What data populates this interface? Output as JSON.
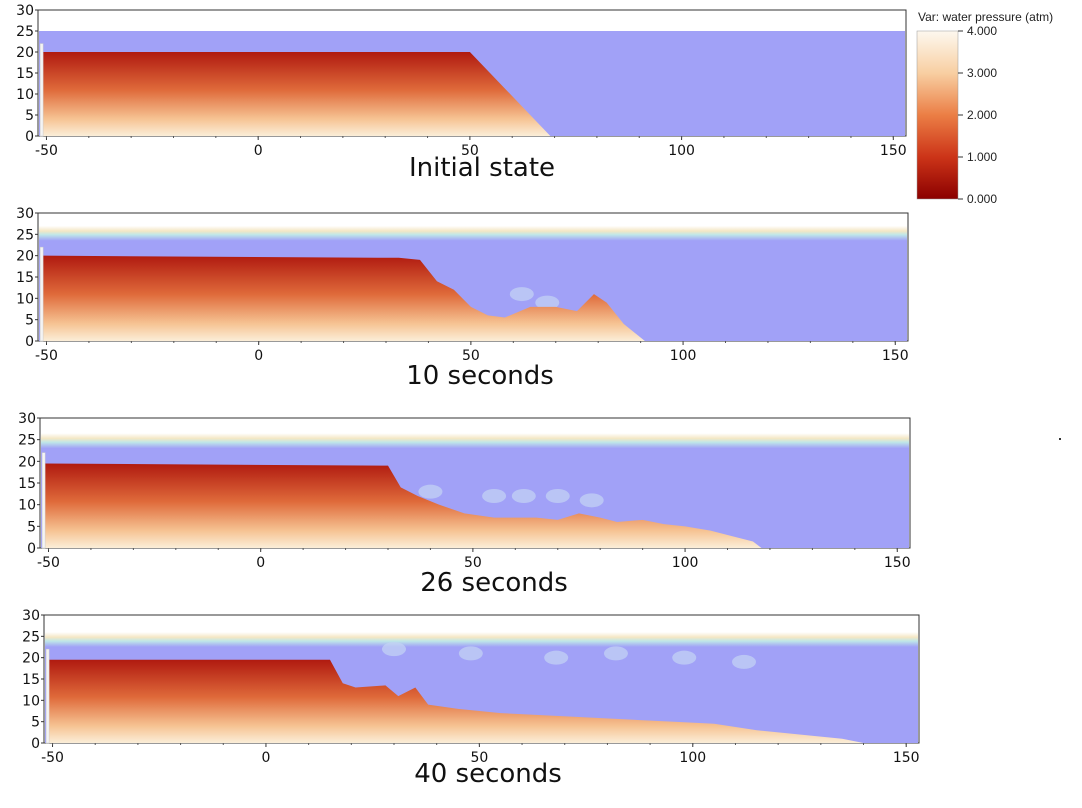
{
  "legend": {
    "title": "Var: water pressure (atm)",
    "ticks": [
      "4.000",
      "3.000",
      "2.000",
      "1.000",
      "0.000"
    ],
    "colors": {
      "high": "#fdf6ec",
      "mid_high": "#f5b27a",
      "mid": "#e0602e",
      "low": "#c01c14",
      "zero": "#8e0000"
    }
  },
  "axis": {
    "y_ticks": [
      "30",
      "25",
      "20",
      "15",
      "10",
      "5",
      "0"
    ],
    "x_ticks": [
      "-50",
      "0",
      "50",
      "100",
      "150"
    ],
    "x_range": [
      -52,
      153
    ],
    "y_range": [
      0,
      30
    ]
  },
  "colors": {
    "water": "#a1a1f7",
    "surface_foam": "#d7eef0",
    "dam_top": "#b01a10",
    "dam_bottom": "#fbeed8",
    "wall": "#f4f4f4"
  },
  "panels": [
    {
      "caption": "Initial state"
    },
    {
      "caption": "10 seconds"
    },
    {
      "caption": "26 seconds"
    },
    {
      "caption": "40 seconds"
    }
  ]
}
